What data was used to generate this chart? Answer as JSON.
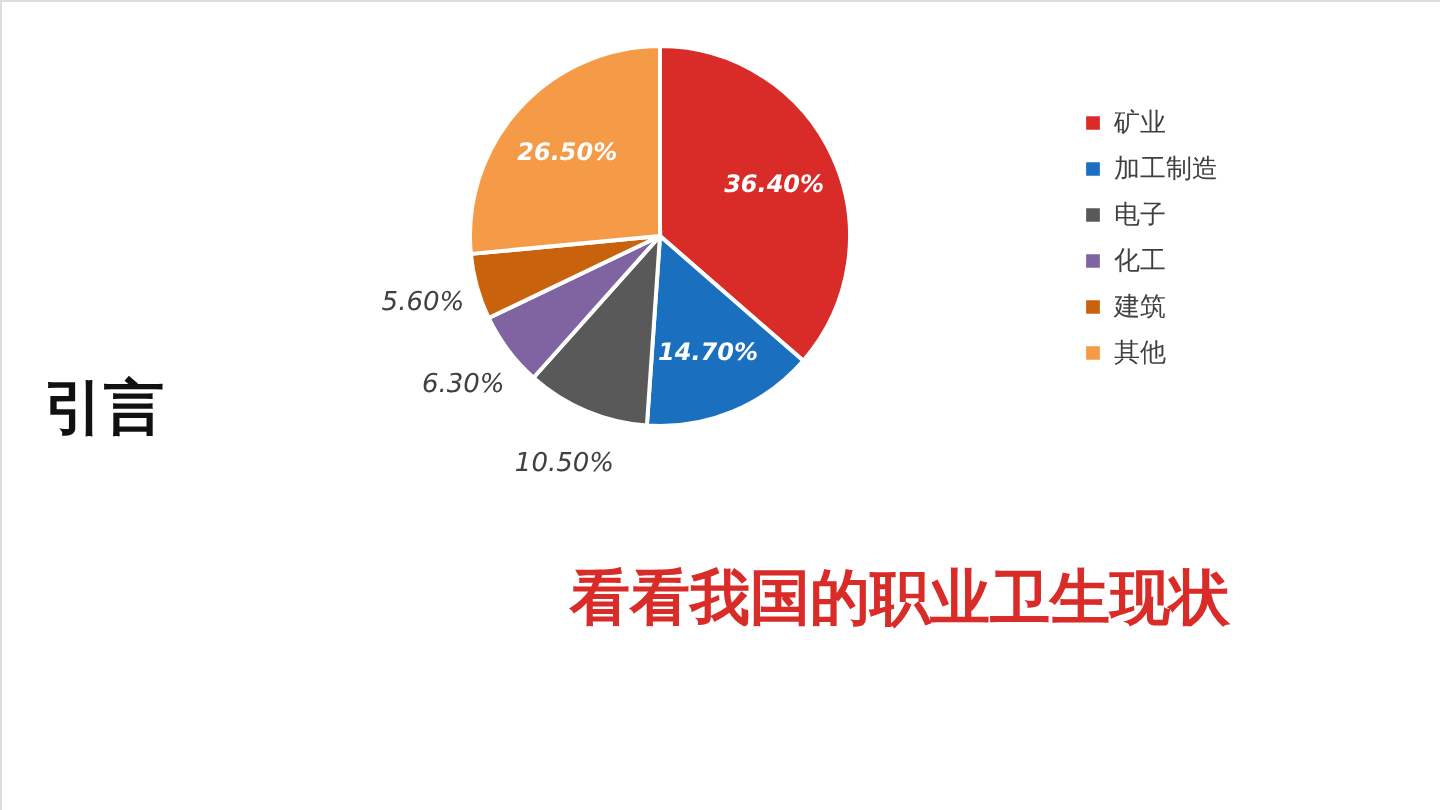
{
  "chart_data": {
    "type": "pie",
    "title": "引言",
    "annotations": [
      "看看我国的职业卫生现状"
    ],
    "categories": [
      "矿业",
      "加工制造",
      "电子",
      "化工",
      "建筑",
      "其他"
    ],
    "values": [
      36.4,
      14.7,
      10.5,
      6.3,
      5.6,
      26.5
    ],
    "colors": [
      "#d92b27",
      "#1a6fbf",
      "#595959",
      "#8064a2",
      "#c8620c",
      "#f59a46"
    ],
    "value_labels": [
      "36.40%",
      "14.70%",
      "10.50%",
      "6.30%",
      "5.60%",
      "26.50%"
    ],
    "legend": "right"
  }
}
